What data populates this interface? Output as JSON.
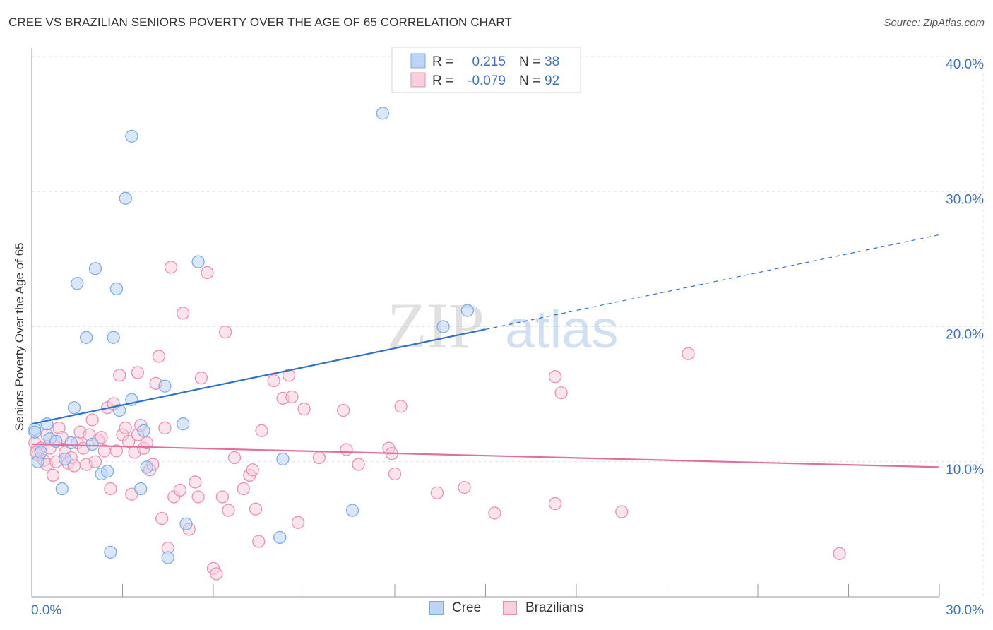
{
  "title": "CREE VS BRAZILIAN SENIORS POVERTY OVER THE AGE OF 65 CORRELATION CHART",
  "source": "Source: ZipAtlas.com",
  "watermark": {
    "zip": "ZIP",
    "atlas": "atlas"
  },
  "colors": {
    "cree": "#7aaee8",
    "cree_fill": "#bcd4f5",
    "cree_line": "#2f72cc",
    "brazilians": "#ec8fb0",
    "brazilians_fill": "#f9cedd",
    "brazilians_line": "#e0709a",
    "axis_value": "#3a72c4",
    "grid": "#e2e2e2"
  },
  "legend": {
    "rows": [
      {
        "r_label": "R =",
        "r_value": "0.215",
        "n_label": "N =",
        "n_value": "38"
      },
      {
        "r_label": "R =",
        "r_value": "-0.079",
        "n_label": "N =",
        "n_value": "92"
      }
    ]
  },
  "bottom_legend": {
    "cree": "Cree",
    "brazilians": "Brazilians"
  },
  "chart_data": {
    "type": "scatter",
    "title": "CREE VS BRAZILIAN SENIORS POVERTY OVER THE AGE OF 65 CORRELATION CHART",
    "xlabel": "",
    "ylabel": "Seniors Poverty Over the Age of 65",
    "xlim": [
      0,
      30
    ],
    "ylim": [
      0,
      40
    ],
    "x_tick_labels": [
      "0.0%",
      "30.0%"
    ],
    "y_tick_labels": [
      "10.0%",
      "20.0%",
      "30.0%",
      "40.0%"
    ],
    "y_ticks": [
      10,
      20,
      30,
      40
    ],
    "grid": true,
    "legend_position": "top-center",
    "series": [
      {
        "name": "Cree",
        "r": 0.215,
        "n": 38,
        "trend": {
          "x_start": 0,
          "y_start": 12.8,
          "x_solid_end": 15,
          "y_solid_end": 19.8,
          "x_dash_end": 30,
          "y_dash_end": 26.8
        },
        "points": [
          [
            0.1,
            12.4
          ],
          [
            0.2,
            10.0
          ],
          [
            0.3,
            10.7
          ],
          [
            0.5,
            12.8
          ],
          [
            0.6,
            11.7
          ],
          [
            0.8,
            11.5
          ],
          [
            1.0,
            8.0
          ],
          [
            1.1,
            10.2
          ],
          [
            1.3,
            11.4
          ],
          [
            1.4,
            14.0
          ],
          [
            1.5,
            23.2
          ],
          [
            1.8,
            19.2
          ],
          [
            2.0,
            11.3
          ],
          [
            2.1,
            24.3
          ],
          [
            2.3,
            9.1
          ],
          [
            2.5,
            9.3
          ],
          [
            2.6,
            3.3
          ],
          [
            2.7,
            19.2
          ],
          [
            2.8,
            22.8
          ],
          [
            2.9,
            13.8
          ],
          [
            3.1,
            29.5
          ],
          [
            3.3,
            34.1
          ],
          [
            3.3,
            14.6
          ],
          [
            3.6,
            8.0
          ],
          [
            3.7,
            12.3
          ],
          [
            3.8,
            9.6
          ],
          [
            4.5,
            2.9
          ],
          [
            4.4,
            15.6
          ],
          [
            5.0,
            12.8
          ],
          [
            5.1,
            5.4
          ],
          [
            5.5,
            24.8
          ],
          [
            8.2,
            4.4
          ],
          [
            8.3,
            10.2
          ],
          [
            10.6,
            6.4
          ],
          [
            11.6,
            35.8
          ],
          [
            13.6,
            20.0
          ],
          [
            14.4,
            21.2
          ],
          [
            0.1,
            12.2
          ]
        ]
      },
      {
        "name": "Brazilians",
        "r": -0.079,
        "n": 92,
        "trend": {
          "x_start": 0,
          "y_start": 11.3,
          "x_end": 30,
          "y_end": 9.6
        },
        "points": [
          [
            0.1,
            11.4
          ],
          [
            0.2,
            10.5
          ],
          [
            0.3,
            11.0
          ],
          [
            0.4,
            10.1
          ],
          [
            0.5,
            9.8
          ],
          [
            0.5,
            12.0
          ],
          [
            0.6,
            11.0
          ],
          [
            0.7,
            9.0
          ],
          [
            0.8,
            10.0
          ],
          [
            0.9,
            12.5
          ],
          [
            1.0,
            11.8
          ],
          [
            1.1,
            10.7
          ],
          [
            1.2,
            9.9
          ],
          [
            1.3,
            10.3
          ],
          [
            1.4,
            9.7
          ],
          [
            1.5,
            11.4
          ],
          [
            1.6,
            12.2
          ],
          [
            1.7,
            11.0
          ],
          [
            1.8,
            9.8
          ],
          [
            1.9,
            12.0
          ],
          [
            2.0,
            13.1
          ],
          [
            2.1,
            10.0
          ],
          [
            2.2,
            11.6
          ],
          [
            2.3,
            11.8
          ],
          [
            2.4,
            10.8
          ],
          [
            2.5,
            14.0
          ],
          [
            2.6,
            8.0
          ],
          [
            2.7,
            14.3
          ],
          [
            2.8,
            10.8
          ],
          [
            2.9,
            16.4
          ],
          [
            3.0,
            12.0
          ],
          [
            3.1,
            12.5
          ],
          [
            3.2,
            11.5
          ],
          [
            3.3,
            7.6
          ],
          [
            3.4,
            10.7
          ],
          [
            3.5,
            12.0
          ],
          [
            3.5,
            16.6
          ],
          [
            3.6,
            12.7
          ],
          [
            3.7,
            11.0
          ],
          [
            3.8,
            11.4
          ],
          [
            3.9,
            9.4
          ],
          [
            4.0,
            9.8
          ],
          [
            4.1,
            15.8
          ],
          [
            4.2,
            17.8
          ],
          [
            4.3,
            5.8
          ],
          [
            4.4,
            12.5
          ],
          [
            4.5,
            3.6
          ],
          [
            4.6,
            24.4
          ],
          [
            4.7,
            7.4
          ],
          [
            4.9,
            7.9
          ],
          [
            5.0,
            21.0
          ],
          [
            5.2,
            5.0
          ],
          [
            5.4,
            8.5
          ],
          [
            5.5,
            7.4
          ],
          [
            5.6,
            16.2
          ],
          [
            5.8,
            24.0
          ],
          [
            6.0,
            2.1
          ],
          [
            6.1,
            1.7
          ],
          [
            6.3,
            7.4
          ],
          [
            6.4,
            19.6
          ],
          [
            6.5,
            6.4
          ],
          [
            6.7,
            10.3
          ],
          [
            7.0,
            8.0
          ],
          [
            7.2,
            9.0
          ],
          [
            7.3,
            9.4
          ],
          [
            7.4,
            6.5
          ],
          [
            7.5,
            4.1
          ],
          [
            7.6,
            12.3
          ],
          [
            8.0,
            16.0
          ],
          [
            8.3,
            14.7
          ],
          [
            8.5,
            16.4
          ],
          [
            8.6,
            14.8
          ],
          [
            8.8,
            5.5
          ],
          [
            9.0,
            13.9
          ],
          [
            9.5,
            10.3
          ],
          [
            10.3,
            13.8
          ],
          [
            10.4,
            10.9
          ],
          [
            10.8,
            9.8
          ],
          [
            11.8,
            11.0
          ],
          [
            11.9,
            10.6
          ],
          [
            12.0,
            9.1
          ],
          [
            12.2,
            14.1
          ],
          [
            13.4,
            7.7
          ],
          [
            14.3,
            8.1
          ],
          [
            15.3,
            6.2
          ],
          [
            17.3,
            6.9
          ],
          [
            17.3,
            16.3
          ],
          [
            17.5,
            15.1
          ],
          [
            19.5,
            6.3
          ],
          [
            21.7,
            18.0
          ],
          [
            26.7,
            3.2
          ],
          [
            0.15,
            10.7
          ]
        ]
      }
    ]
  }
}
